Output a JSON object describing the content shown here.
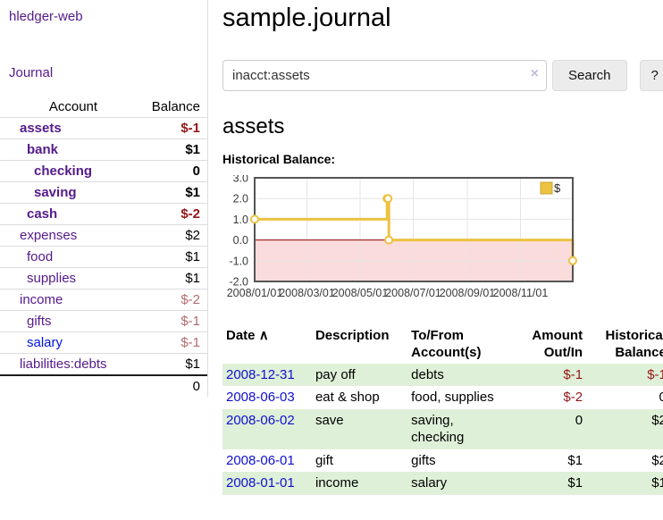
{
  "colors": {
    "link_purple": "#551a8b",
    "link_blue": "#0014dc",
    "date_link_blue": "#0f0fd0",
    "negative_strong": "#941616",
    "negative_weak": "#b36a6e",
    "row_stripe_green": "#dff0d8",
    "series_gold": "#edc240"
  },
  "sidebar": {
    "app_title": "hledger-web",
    "journal_link": "Journal",
    "accounts": {
      "headers": {
        "account": "Account",
        "balance": "Balance"
      },
      "rows": [
        {
          "name": "assets",
          "balance": "$-1",
          "depth": 0,
          "bold": true,
          "negative": "strong"
        },
        {
          "name": "bank",
          "balance": "$1",
          "depth": 1,
          "bold": true,
          "negative": null
        },
        {
          "name": "checking",
          "balance": "0",
          "depth": 2,
          "bold": true,
          "negative": null
        },
        {
          "name": "saving",
          "balance": "$1",
          "depth": 2,
          "bold": true,
          "negative": null
        },
        {
          "name": "cash",
          "balance": "$-2",
          "depth": 1,
          "bold": true,
          "negative": "strong"
        },
        {
          "name": "expenses",
          "balance": "$2",
          "depth": 0,
          "bold": false,
          "negative": null
        },
        {
          "name": "food",
          "balance": "$1",
          "depth": 1,
          "bold": false,
          "negative": null
        },
        {
          "name": "supplies",
          "balance": "$1",
          "depth": 1,
          "bold": false,
          "negative": null
        },
        {
          "name": "income",
          "balance": "$-2",
          "depth": 0,
          "bold": false,
          "negative": "weak"
        },
        {
          "name": "gifts",
          "balance": "$-1",
          "depth": 1,
          "bold": false,
          "negative": "weak"
        },
        {
          "name": "salary",
          "balance": "$-1",
          "depth": 1,
          "bold": false,
          "negative": "weak"
        },
        {
          "name": "liabilities:debts",
          "balance": "$1",
          "depth": 0,
          "bold": false,
          "negative": null
        }
      ],
      "total": "0"
    }
  },
  "main": {
    "title": "sample.journal",
    "search": {
      "value": "inacct:assets",
      "clear_icon": "×",
      "search_button": "Search",
      "help_button": "?"
    },
    "account_heading": "assets",
    "chart_title": "Historical Balance:"
  },
  "chart_data": {
    "type": "line",
    "step": true,
    "title": "Historical Balance:",
    "legend": {
      "label": "$",
      "position": "top-right"
    },
    "xlim": [
      0,
      365
    ],
    "ylim": [
      -2,
      3
    ],
    "series": [
      {
        "name": "$",
        "color": "#edc240",
        "points": [
          {
            "date": "2008-01-01",
            "day": 0,
            "value": 1
          },
          {
            "date": "2008-06-01",
            "day": 152,
            "value": 2
          },
          {
            "date": "2008-06-02",
            "day": 153,
            "value": 2
          },
          {
            "date": "2008-06-03",
            "day": 154,
            "value": 0
          },
          {
            "date": "2008-12-31",
            "day": 365,
            "value": -1
          }
        ]
      }
    ],
    "yticks": [
      {
        "label": "3.0",
        "value": 3
      },
      {
        "label": "2.0",
        "value": 2
      },
      {
        "label": "1.0",
        "value": 1
      },
      {
        "label": "0.0",
        "value": 0
      },
      {
        "label": "-1.0",
        "value": -1
      },
      {
        "label": "-2.0",
        "value": -2
      }
    ],
    "ygrid_values": [
      2,
      1,
      -1
    ],
    "xticks": [
      {
        "label": "2008/01/01",
        "day": 0
      },
      {
        "label": "2008/03/01",
        "day": 60
      },
      {
        "label": "2008/05/01",
        "day": 121
      },
      {
        "label": "2008/07/01",
        "day": 182
      },
      {
        "label": "2008/09/01",
        "day": 244
      },
      {
        "label": "2008/11/01",
        "day": 305
      }
    ],
    "grid": true,
    "colors": {
      "line": "#edc240",
      "marker_fill": "#ffffff",
      "legend_swatch_border": "#c9a53a",
      "negative_region": "#fbdcdc",
      "zero_line": "#8b0000",
      "grid": "#e5e5e5",
      "border": "#545454",
      "tick_text": "#3a3a3a"
    }
  },
  "register": {
    "columns": [
      {
        "label": "Date"
      },
      {
        "label": "Description"
      },
      {
        "label": "To/From Account(s)"
      },
      {
        "label": "Amount Out/In"
      },
      {
        "label": "Historical Balance"
      }
    ],
    "sort_indicator": "∧",
    "rows": [
      {
        "date": "2008-12-31",
        "description": "pay off",
        "accounts": "debts",
        "amount": "$-1",
        "balance": "$-1"
      },
      {
        "date": "2008-06-03",
        "description": "eat & shop",
        "accounts": "food, supplies",
        "amount": "$-2",
        "balance": "0"
      },
      {
        "date": "2008-06-02",
        "description": "save",
        "accounts": "saving, checking",
        "amount": "0",
        "balance": "$2"
      },
      {
        "date": "2008-06-01",
        "description": "gift",
        "accounts": "gifts",
        "amount": "$1",
        "balance": "$2"
      },
      {
        "date": "2008-01-01",
        "description": "income",
        "accounts": "salary",
        "amount": "$1",
        "balance": "$1"
      }
    ]
  }
}
